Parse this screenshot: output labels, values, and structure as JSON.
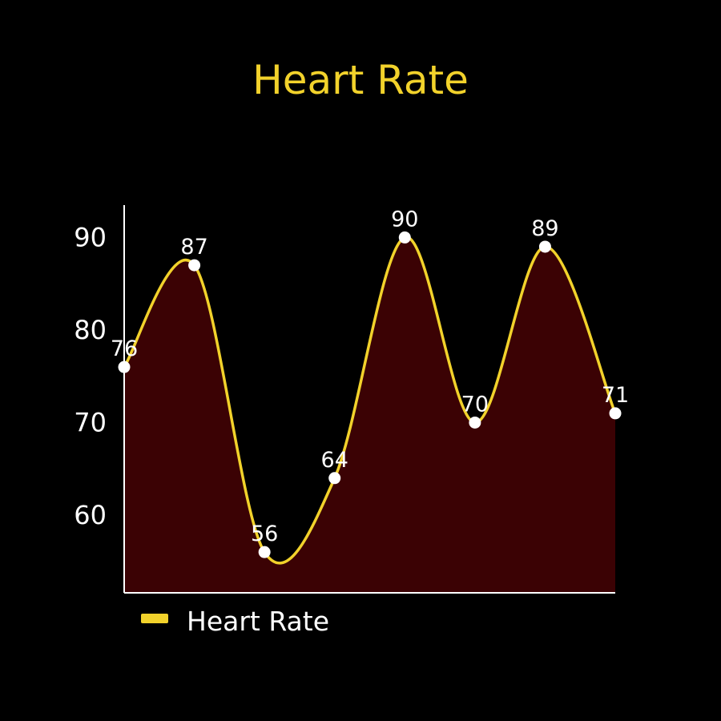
{
  "chart_data": {
    "type": "area",
    "title": "Heart Rate",
    "xlabel": "",
    "ylabel": "",
    "y_ticks": [
      60,
      70,
      80,
      90
    ],
    "ylim": [
      51.6,
      93.5
    ],
    "series": [
      {
        "name": "Heart Rate",
        "values": [
          76,
          87,
          56,
          64,
          90,
          70,
          89,
          71
        ]
      }
    ],
    "legend_position": "bottom-left",
    "grid": false,
    "colors": {
      "background": "#000000",
      "title": "#f2d22b",
      "line": "#f2d22b",
      "fill": "#3b0204",
      "marker": "#ffffff",
      "axis": "#ffffff",
      "text": "#ffffff"
    }
  }
}
